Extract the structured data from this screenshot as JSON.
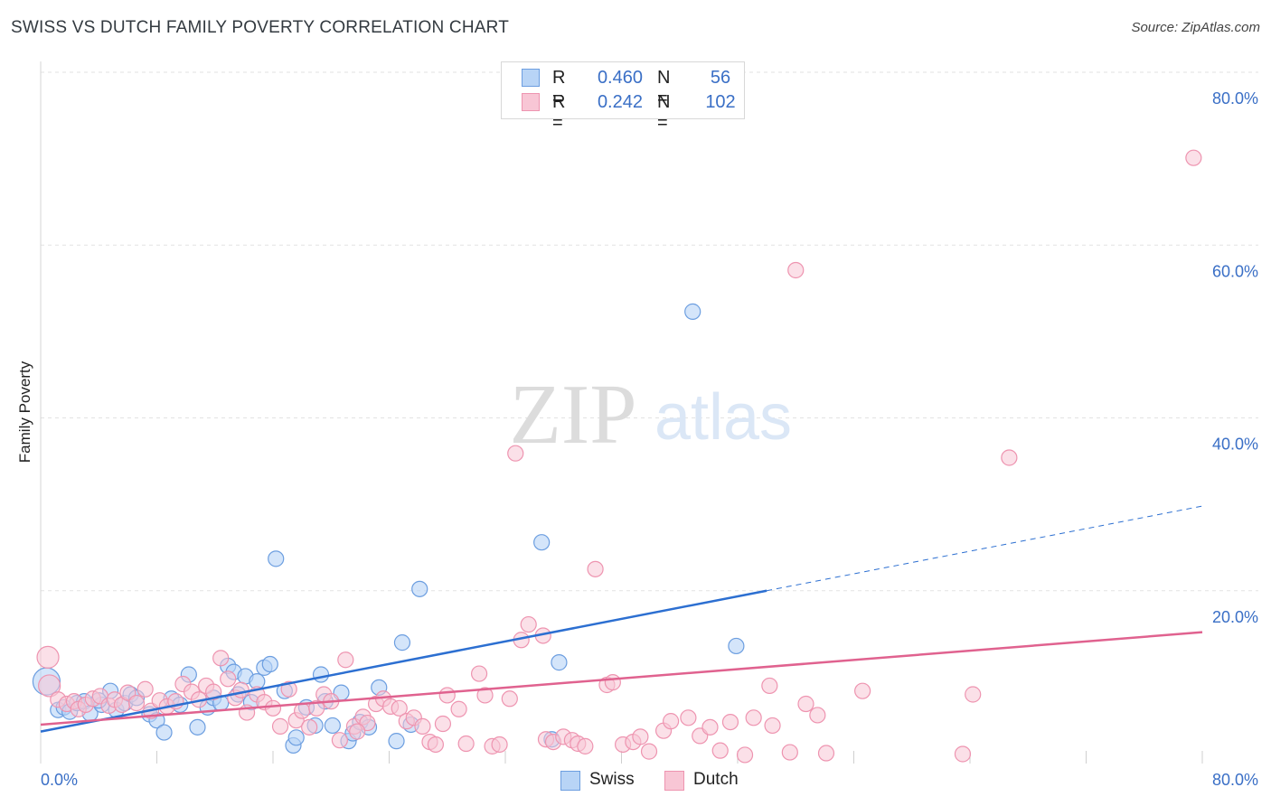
{
  "title": "SWISS VS DUTCH FAMILY POVERTY CORRELATION CHART",
  "source": "Source: ZipAtlas.com",
  "watermark": {
    "zip": "ZIP",
    "atlas": "atlas"
  },
  "colors": {
    "swiss_fill": "#b8d4f6",
    "swiss_stroke": "#6c9ee0",
    "swiss_line": "#2c6fd1",
    "dutch_fill": "#f8c6d5",
    "dutch_stroke": "#ee94b0",
    "dutch_line": "#e0628f",
    "tick_label": "#3a6fc6",
    "grid": "#e2e2e2"
  },
  "legend": {
    "r_label": "R =",
    "n_label": "N =",
    "rows": [
      {
        "series": "Swiss",
        "r": "0.460",
        "n": "56"
      },
      {
        "series": "Dutch",
        "r": "0.242",
        "n": "102"
      }
    ]
  },
  "chart_data": {
    "type": "scatter",
    "title": "SWISS VS DUTCH FAMILY POVERTY CORRELATION CHART",
    "xlabel": "",
    "ylabel": "Family Poverty",
    "xlim": [
      0,
      80
    ],
    "ylim": [
      0,
      80
    ],
    "grid": true,
    "legend_position": "top-center",
    "x_tick_labels": [
      "0.0%",
      "80.0%"
    ],
    "y_ticks": [
      20,
      40,
      60,
      80
    ],
    "y_tick_labels": [
      "20.0%",
      "40.0%",
      "60.0%",
      "80.0%"
    ],
    "series": [
      {
        "name": "Swiss",
        "points": [
          [
            0.4,
            9.5
          ],
          [
            1.2,
            6.2
          ],
          [
            1.6,
            6.5
          ],
          [
            2.0,
            6.0
          ],
          [
            2.5,
            7.0
          ],
          [
            3.0,
            7.2
          ],
          [
            3.4,
            5.8
          ],
          [
            4.2,
            6.8
          ],
          [
            4.8,
            8.4
          ],
          [
            5.2,
            6.2
          ],
          [
            5.8,
            7.0
          ],
          [
            6.2,
            8.0
          ],
          [
            6.6,
            7.6
          ],
          [
            7.5,
            5.7
          ],
          [
            8.0,
            5.0
          ],
          [
            8.5,
            3.6
          ],
          [
            9.0,
            7.5
          ],
          [
            9.6,
            6.8
          ],
          [
            10.2,
            10.3
          ],
          [
            10.8,
            4.2
          ],
          [
            11.5,
            6.5
          ],
          [
            11.9,
            7.6
          ],
          [
            12.4,
            7.0
          ],
          [
            12.9,
            11.3
          ],
          [
            13.3,
            10.6
          ],
          [
            14.1,
            10.1
          ],
          [
            14.5,
            7.1
          ],
          [
            14.9,
            9.5
          ],
          [
            15.4,
            11.1
          ],
          [
            15.8,
            11.5
          ],
          [
            16.2,
            23.7
          ],
          [
            16.8,
            8.4
          ],
          [
            17.4,
            2.1
          ],
          [
            17.6,
            3.0
          ],
          [
            18.3,
            6.5
          ],
          [
            18.9,
            4.4
          ],
          [
            19.3,
            10.3
          ],
          [
            19.6,
            7.2
          ],
          [
            20.1,
            4.4
          ],
          [
            20.7,
            8.2
          ],
          [
            21.2,
            2.6
          ],
          [
            21.5,
            3.5
          ],
          [
            22.0,
            4.8
          ],
          [
            22.6,
            4.2
          ],
          [
            23.3,
            8.8
          ],
          [
            24.5,
            2.6
          ],
          [
            24.9,
            14.0
          ],
          [
            25.5,
            4.5
          ],
          [
            26.1,
            20.2
          ],
          [
            34.5,
            25.6
          ],
          [
            35.2,
            2.8
          ],
          [
            35.7,
            11.7
          ],
          [
            44.9,
            52.3
          ],
          [
            47.9,
            13.6
          ],
          [
            4.0,
            7.3
          ],
          [
            13.6,
            8.0
          ]
        ]
      },
      {
        "name": "Dutch",
        "points": [
          [
            0.5,
            12.3
          ],
          [
            0.6,
            9.0
          ],
          [
            1.2,
            7.4
          ],
          [
            1.8,
            6.9
          ],
          [
            2.3,
            7.2
          ],
          [
            2.6,
            6.3
          ],
          [
            3.1,
            6.8
          ],
          [
            3.6,
            7.5
          ],
          [
            4.1,
            7.8
          ],
          [
            4.7,
            6.7
          ],
          [
            5.1,
            7.4
          ],
          [
            5.6,
            6.8
          ],
          [
            6.0,
            8.2
          ],
          [
            6.6,
            7.0
          ],
          [
            7.2,
            8.6
          ],
          [
            7.6,
            6.1
          ],
          [
            8.2,
            7.3
          ],
          [
            8.7,
            6.6
          ],
          [
            9.3,
            7.2
          ],
          [
            9.8,
            9.2
          ],
          [
            10.4,
            8.3
          ],
          [
            10.9,
            7.4
          ],
          [
            11.4,
            9.0
          ],
          [
            11.9,
            8.3
          ],
          [
            12.4,
            12.2
          ],
          [
            12.9,
            9.8
          ],
          [
            13.4,
            7.6
          ],
          [
            13.8,
            8.5
          ],
          [
            14.2,
            5.9
          ],
          [
            14.9,
            8.0
          ],
          [
            15.4,
            7.1
          ],
          [
            16.0,
            6.4
          ],
          [
            16.5,
            4.3
          ],
          [
            17.1,
            8.6
          ],
          [
            17.6,
            5.0
          ],
          [
            18.0,
            6.1
          ],
          [
            18.5,
            4.2
          ],
          [
            19.0,
            6.4
          ],
          [
            19.5,
            8.0
          ],
          [
            20.0,
            7.2
          ],
          [
            20.6,
            2.7
          ],
          [
            21.0,
            12.0
          ],
          [
            21.6,
            4.3
          ],
          [
            22.2,
            5.4
          ],
          [
            22.5,
            4.7
          ],
          [
            23.1,
            6.9
          ],
          [
            23.6,
            7.5
          ],
          [
            24.1,
            6.6
          ],
          [
            24.7,
            6.4
          ],
          [
            25.2,
            4.9
          ],
          [
            25.7,
            5.3
          ],
          [
            26.3,
            4.3
          ],
          [
            26.8,
            2.5
          ],
          [
            27.2,
            2.2
          ],
          [
            28.0,
            7.9
          ],
          [
            28.8,
            6.3
          ],
          [
            29.3,
            2.3
          ],
          [
            30.2,
            10.4
          ],
          [
            30.6,
            7.9
          ],
          [
            31.1,
            2.0
          ],
          [
            31.6,
            2.2
          ],
          [
            32.3,
            7.5
          ],
          [
            32.7,
            35.9
          ],
          [
            33.1,
            14.3
          ],
          [
            33.6,
            16.1
          ],
          [
            34.6,
            14.8
          ],
          [
            34.8,
            2.8
          ],
          [
            35.3,
            2.5
          ],
          [
            36.0,
            3.1
          ],
          [
            36.6,
            2.7
          ],
          [
            37.0,
            2.3
          ],
          [
            37.5,
            2.0
          ],
          [
            38.2,
            22.5
          ],
          [
            39.0,
            9.1
          ],
          [
            39.4,
            9.4
          ],
          [
            40.1,
            2.2
          ],
          [
            40.8,
            2.5
          ],
          [
            41.3,
            3.1
          ],
          [
            41.9,
            1.4
          ],
          [
            42.9,
            3.8
          ],
          [
            44.6,
            5.3
          ],
          [
            45.4,
            3.2
          ],
          [
            46.1,
            4.2
          ],
          [
            46.8,
            1.5
          ],
          [
            47.5,
            4.8
          ],
          [
            48.5,
            1.0
          ],
          [
            49.1,
            5.3
          ],
          [
            50.2,
            9.0
          ],
          [
            50.4,
            4.4
          ],
          [
            51.6,
            1.3
          ],
          [
            52.0,
            57.1
          ],
          [
            52.7,
            6.9
          ],
          [
            53.5,
            5.6
          ],
          [
            54.1,
            1.2
          ],
          [
            56.6,
            8.4
          ],
          [
            63.5,
            1.1
          ],
          [
            64.2,
            8.0
          ],
          [
            66.7,
            35.4
          ],
          [
            79.4,
            70.1
          ],
          [
            21.8,
            3.7
          ],
          [
            27.7,
            4.6
          ],
          [
            43.4,
            4.9
          ]
        ]
      }
    ],
    "trend_lines": [
      {
        "series": "Swiss",
        "x_start": 0,
        "y_start": 3.7,
        "x_end": 50,
        "y_end": 20.0,
        "dashed_to_x": 80,
        "dashed_to_y": 29.8
      },
      {
        "series": "Dutch",
        "x_start": 0,
        "y_start": 4.5,
        "x_end": 80,
        "y_end": 15.2
      }
    ]
  }
}
